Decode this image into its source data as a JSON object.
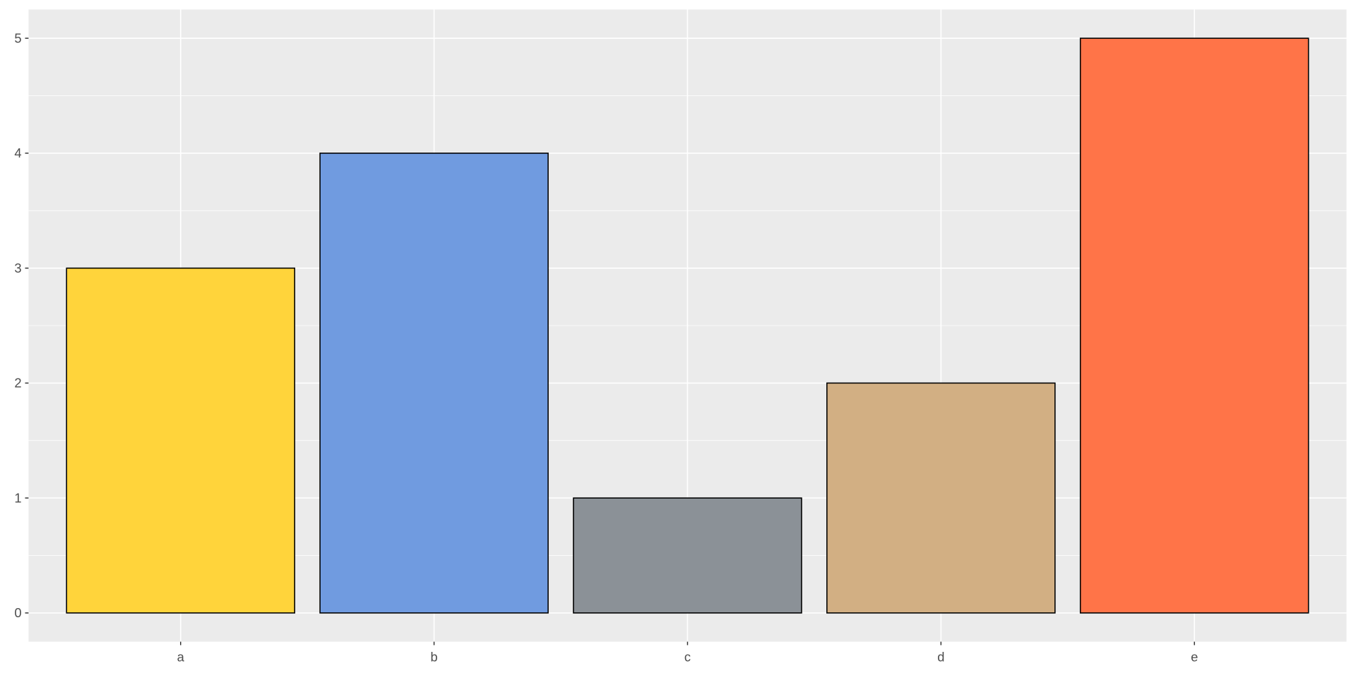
{
  "chart_data": {
    "type": "bar",
    "title": "",
    "xlabel": "",
    "ylabel": "",
    "categories": [
      "a",
      "b",
      "c",
      "d",
      "e"
    ],
    "values": [
      3,
      4,
      1,
      2,
      5
    ],
    "colors": [
      "#FFD43B",
      "#709BE0",
      "#8B9197",
      "#D2AF83",
      "#FF7448"
    ],
    "bar_outline": "#000000",
    "panel_background": "#EBEBEB",
    "grid": true,
    "ylim": [
      -0.25,
      5.25
    ],
    "yticks": [
      0,
      1,
      2,
      3,
      4,
      5
    ],
    "legend": "none"
  }
}
